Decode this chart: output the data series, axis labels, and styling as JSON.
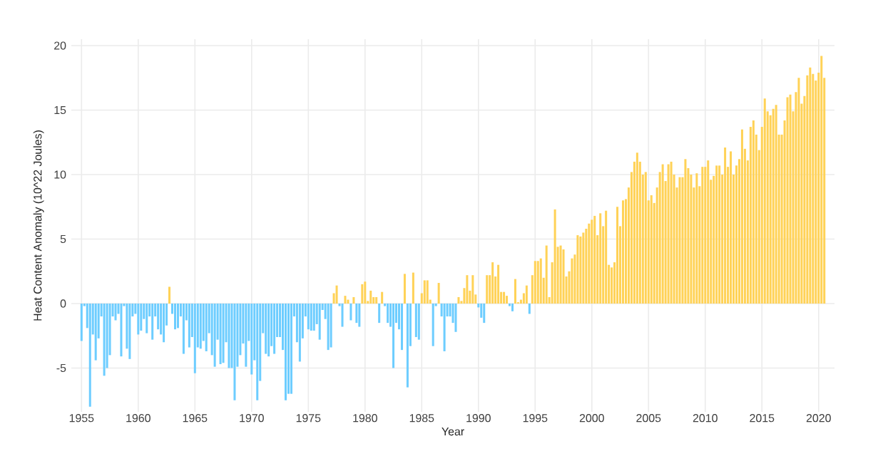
{
  "chart_data": {
    "type": "bar",
    "xlabel": "Year",
    "ylabel": "Heat Content Anomaly (10^22 Joules)",
    "xlim": [
      1954.1,
      2021.4
    ],
    "ylim": [
      -8.4,
      20.5
    ],
    "xticks": [
      1955,
      1960,
      1965,
      1970,
      1975,
      1980,
      1985,
      1990,
      1995,
      2000,
      2005,
      2010,
      2015,
      2020
    ],
    "yticks": [
      -5,
      0,
      5,
      10,
      15,
      20
    ],
    "grid": true,
    "x": [
      1955.0,
      1955.25,
      1955.5,
      1955.75,
      1956.0,
      1956.25,
      1956.5,
      1956.75,
      1957.0,
      1957.25,
      1957.5,
      1957.75,
      1958.0,
      1958.25,
      1958.5,
      1958.75,
      1959.0,
      1959.25,
      1959.5,
      1959.75,
      1960.0,
      1960.25,
      1960.5,
      1960.75,
      1961.0,
      1961.25,
      1961.5,
      1961.75,
      1962.0,
      1962.25,
      1962.5,
      1962.75,
      1963.0,
      1963.25,
      1963.5,
      1963.75,
      1964.0,
      1964.25,
      1964.5,
      1964.75,
      1965.0,
      1965.25,
      1965.5,
      1965.75,
      1966.0,
      1966.25,
      1966.5,
      1966.75,
      1967.0,
      1967.25,
      1967.5,
      1967.75,
      1968.0,
      1968.25,
      1968.5,
      1968.75,
      1969.0,
      1969.25,
      1969.5,
      1969.75,
      1970.0,
      1970.25,
      1970.5,
      1970.75,
      1971.0,
      1971.25,
      1971.5,
      1971.75,
      1972.0,
      1972.25,
      1972.5,
      1972.75,
      1973.0,
      1973.25,
      1973.5,
      1973.75,
      1974.0,
      1974.25,
      1974.5,
      1974.75,
      1975.0,
      1975.25,
      1975.5,
      1975.75,
      1976.0,
      1976.25,
      1976.5,
      1976.75,
      1977.0,
      1977.25,
      1977.5,
      1977.75,
      1978.0,
      1978.25,
      1978.5,
      1978.75,
      1979.0,
      1979.25,
      1979.5,
      1979.75,
      1980.0,
      1980.25,
      1980.5,
      1980.75,
      1981.0,
      1981.25,
      1981.5,
      1981.75,
      1982.0,
      1982.25,
      1982.5,
      1982.75,
      1983.0,
      1983.25,
      1983.5,
      1983.75,
      1984.0,
      1984.25,
      1984.5,
      1984.75,
      1985.0,
      1985.25,
      1985.5,
      1985.75,
      1986.0,
      1986.25,
      1986.5,
      1986.75,
      1987.0,
      1987.25,
      1987.5,
      1987.75,
      1988.0,
      1988.25,
      1988.5,
      1988.75,
      1989.0,
      1989.25,
      1989.5,
      1989.75,
      1990.0,
      1990.25,
      1990.5,
      1990.75,
      1991.0,
      1991.25,
      1991.5,
      1991.75,
      1992.0,
      1992.25,
      1992.5,
      1992.75,
      1993.0,
      1993.25,
      1993.5,
      1993.75,
      1994.0,
      1994.25,
      1994.5,
      1994.75,
      1995.0,
      1995.25,
      1995.5,
      1995.75,
      1996.0,
      1996.25,
      1996.5,
      1996.75,
      1997.0,
      1997.25,
      1997.5,
      1997.75,
      1998.0,
      1998.25,
      1998.5,
      1998.75,
      1999.0,
      1999.25,
      1999.5,
      1999.75,
      2000.0,
      2000.25,
      2000.5,
      2000.75,
      2001.0,
      2001.25,
      2001.5,
      2001.75,
      2002.0,
      2002.25,
      2002.5,
      2002.75,
      2003.0,
      2003.25,
      2003.5,
      2003.75,
      2004.0,
      2004.25,
      2004.5,
      2004.75,
      2005.0,
      2005.25,
      2005.5,
      2005.75,
      2006.0,
      2006.25,
      2006.5,
      2006.75,
      2007.0,
      2007.25,
      2007.5,
      2007.75,
      2008.0,
      2008.25,
      2008.5,
      2008.75,
      2009.0,
      2009.25,
      2009.5,
      2009.75,
      2010.0,
      2010.25,
      2010.5,
      2010.75,
      2011.0,
      2011.25,
      2011.5,
      2011.75,
      2012.0,
      2012.25,
      2012.5,
      2012.75,
      2013.0,
      2013.25,
      2013.5,
      2013.75,
      2014.0,
      2014.25,
      2014.5,
      2014.75,
      2015.0,
      2015.25,
      2015.5,
      2015.75,
      2016.0,
      2016.25,
      2016.5,
      2016.75,
      2017.0,
      2017.25,
      2017.5,
      2017.75,
      2018.0,
      2018.25,
      2018.5,
      2018.75,
      2019.0,
      2019.25,
      2019.5,
      2019.75,
      2020.0,
      2020.25,
      2020.5
    ],
    "values": [
      -2.9,
      -0.2,
      -1.9,
      -8.0,
      -2.4,
      -4.4,
      -2.7,
      -1.0,
      -5.6,
      -5.0,
      -4.0,
      -1.0,
      -1.3,
      -0.8,
      -4.1,
      -0.2,
      -3.5,
      -4.3,
      -1.0,
      -0.8,
      -2.4,
      -2.1,
      -1.2,
      -2.3,
      -1.0,
      -2.8,
      -1.0,
      -2.0,
      -2.4,
      -3.0,
      -1.7,
      1.3,
      -0.8,
      -2.0,
      -1.9,
      -1.0,
      -3.9,
      -1.3,
      -3.4,
      -2.6,
      -5.4,
      -3.4,
      -3.5,
      -2.9,
      -3.7,
      -2.3,
      -4.0,
      -4.9,
      -2.8,
      -4.7,
      -4.6,
      -3.0,
      -5.0,
      -5.0,
      -7.5,
      -4.9,
      -4.0,
      -3.1,
      -4.9,
      -2.9,
      -5.5,
      -4.4,
      -7.5,
      -6.0,
      -2.3,
      -3.9,
      -4.1,
      -3.3,
      -3.9,
      -2.6,
      -2.6,
      -3.6,
      -7.5,
      -7.0,
      -7.0,
      -1.0,
      -3.0,
      -4.5,
      -2.7,
      -1.0,
      -2.0,
      -2.1,
      -2.1,
      -1.6,
      -2.8,
      -0.5,
      -1.2,
      -3.6,
      -3.4,
      0.8,
      1.4,
      -0.2,
      -1.8,
      0.6,
      0.3,
      -1.3,
      0.5,
      -1.5,
      -1.8,
      1.5,
      1.7,
      0.2,
      1.0,
      0.5,
      0.5,
      -1.5,
      0.9,
      -0.2,
      -1.5,
      -1.8,
      -5.0,
      -1.5,
      -2.0,
      -3.6,
      2.3,
      -6.5,
      -3.3,
      2.4,
      -2.6,
      -2.8,
      0.8,
      1.8,
      1.8,
      0.3,
      -3.3,
      -0.2,
      1.6,
      -1.0,
      -3.7,
      -1.0,
      -1.0,
      -1.5,
      -2.2,
      0.5,
      0.2,
      1.2,
      2.2,
      1.0,
      2.2,
      0.7,
      -0.3,
      -1.1,
      -1.5,
      2.2,
      2.2,
      3.2,
      2.1,
      3.0,
      0.9,
      0.9,
      0.6,
      -0.2,
      -0.6,
      1.9,
      0.1,
      0.3,
      0.8,
      1.4,
      -0.8,
      2.2,
      3.3,
      3.3,
      3.5,
      2.0,
      4.5,
      0.5,
      3.2,
      7.3,
      4.4,
      4.5,
      4.2,
      2.1,
      2.5,
      3.5,
      3.8,
      5.3,
      5.2,
      5.5,
      5.8,
      6.2,
      6.5,
      6.8,
      5.3,
      7.0,
      6.0,
      7.2,
      3.0,
      2.8,
      3.2,
      7.5,
      6.0,
      8.0,
      8.1,
      9.0,
      10.2,
      11.0,
      11.7,
      11.0,
      10.0,
      10.2,
      8.0,
      8.4,
      7.8,
      9.0,
      10.2,
      10.8,
      9.5,
      10.8,
      11.0,
      10.0,
      9.0,
      9.8,
      9.8,
      11.2,
      10.5,
      10.0,
      9.0,
      10.1,
      9.1,
      10.6,
      10.6,
      11.1,
      9.6,
      9.9,
      10.7,
      10.7,
      10.0,
      12.1,
      10.6,
      11.8,
      10.0,
      10.7,
      11.2,
      13.5,
      12.0,
      11.1,
      13.7,
      14.2,
      13.1,
      11.9,
      13.7,
      15.9,
      14.9,
      14.6,
      15.1,
      15.4,
      13.1,
      13.1,
      14.2,
      16.0,
      16.2,
      14.9,
      16.4,
      17.5,
      15.5,
      16.1,
      17.7,
      18.3,
      17.8,
      17.3,
      17.9,
      19.2,
      17.5
    ],
    "colors": [
      "#6dcdff",
      "#6dcdff",
      "#6dcdff",
      "#6dcdff",
      "#6dcdff",
      "#6dcdff",
      "#6dcdff",
      "#6dcdff",
      "#6dcdff",
      "#6dcdff",
      "#6dcdff",
      "#6dcdff",
      "#6dcdff",
      "#6dcdff",
      "#6dcdff",
      "#6dcdff",
      "#6dcdff",
      "#6dcdff",
      "#6dcdff",
      "#6dcdff",
      "#6dcdff",
      "#6dcdff",
      "#6dcdff",
      "#6dcdff",
      "#6dcdff",
      "#6dcdff",
      "#6dcdff",
      "#6dcdff",
      "#6dcdff",
      "#6dcdff",
      "#6dcdff",
      "#ffd257",
      "#6dcdff",
      "#6dcdff",
      "#6dcdff",
      "#6dcdff",
      "#6dcdff",
      "#6dcdff",
      "#6dcdff",
      "#6dcdff",
      "#6dcdff",
      "#6dcdff",
      "#6dcdff",
      "#6dcdff",
      "#6dcdff",
      "#6dcdff",
      "#6dcdff",
      "#6dcdff",
      "#6dcdff",
      "#6dcdff",
      "#6dcdff",
      "#6dcdff",
      "#6dcdff",
      "#6dcdff",
      "#6dcdff",
      "#6dcdff",
      "#6dcdff",
      "#6dcdff",
      "#6dcdff",
      "#6dcdff",
      "#6dcdff",
      "#6dcdff",
      "#6dcdff",
      "#6dcdff",
      "#6dcdff",
      "#6dcdff",
      "#6dcdff",
      "#6dcdff",
      "#6dcdff",
      "#6dcdff",
      "#6dcdff",
      "#6dcdff",
      "#6dcdff",
      "#6dcdff",
      "#6dcdff",
      "#6dcdff",
      "#6dcdff",
      "#6dcdff",
      "#6dcdff",
      "#6dcdff",
      "#6dcdff",
      "#6dcdff",
      "#6dcdff",
      "#6dcdff",
      "#6dcdff",
      "#6dcdff",
      "#6dcdff",
      "#6dcdff",
      "#6dcdff",
      "#ffd257",
      "#ffd257",
      "#6dcdff",
      "#6dcdff",
      "#ffd257",
      "#ffd257",
      "#6dcdff",
      "#ffd257",
      "#6dcdff",
      "#6dcdff",
      "#ffd257",
      "#ffd257",
      "#ffd257",
      "#ffd257",
      "#ffd257",
      "#ffd257",
      "#6dcdff",
      "#ffd257",
      "#6dcdff",
      "#6dcdff",
      "#6dcdff",
      "#6dcdff",
      "#6dcdff",
      "#6dcdff",
      "#6dcdff",
      "#ffd257",
      "#6dcdff",
      "#6dcdff",
      "#ffd257",
      "#6dcdff",
      "#6dcdff",
      "#ffd257",
      "#ffd257",
      "#ffd257",
      "#ffd257",
      "#6dcdff",
      "#6dcdff",
      "#ffd257",
      "#6dcdff",
      "#6dcdff",
      "#6dcdff",
      "#6dcdff",
      "#6dcdff",
      "#6dcdff",
      "#ffd257",
      "#ffd257",
      "#ffd257",
      "#ffd257",
      "#ffd257",
      "#ffd257",
      "#ffd257",
      "#6dcdff",
      "#6dcdff",
      "#6dcdff",
      "#ffd257",
      "#ffd257",
      "#ffd257",
      "#ffd257",
      "#ffd257",
      "#ffd257",
      "#ffd257",
      "#ffd257",
      "#6dcdff",
      "#6dcdff",
      "#ffd257",
      "#ffd257",
      "#ffd257",
      "#ffd257",
      "#ffd257",
      "#6dcdff",
      "#ffd257",
      "#ffd257",
      "#ffd257",
      "#ffd257",
      "#ffd257",
      "#ffd257",
      "#ffd257",
      "#ffd257",
      "#ffd257",
      "#ffd257",
      "#ffd257",
      "#ffd257",
      "#ffd257",
      "#ffd257",
      "#ffd257",
      "#ffd257",
      "#ffd257",
      "#ffd257",
      "#ffd257",
      "#ffd257",
      "#ffd257",
      "#ffd257",
      "#ffd257",
      "#ffd257",
      "#ffd257",
      "#ffd257",
      "#ffd257",
      "#ffd257",
      "#ffd257",
      "#ffd257",
      "#ffd257",
      "#ffd257",
      "#ffd257",
      "#ffd257",
      "#ffd257",
      "#ffd257",
      "#ffd257",
      "#ffd257",
      "#ffd257",
      "#ffd257",
      "#ffd257",
      "#ffd257",
      "#ffd257",
      "#ffd257",
      "#ffd257",
      "#ffd257",
      "#ffd257",
      "#ffd257",
      "#ffd257",
      "#ffd257",
      "#ffd257",
      "#ffd257",
      "#ffd257",
      "#ffd257",
      "#ffd257",
      "#ffd257",
      "#ffd257",
      "#ffd257",
      "#ffd257",
      "#ffd257",
      "#ffd257",
      "#ffd257",
      "#ffd257",
      "#ffd257",
      "#ffd257",
      "#ffd257",
      "#ffd257",
      "#ffd257",
      "#ffd257",
      "#ffd257",
      "#ffd257",
      "#ffd257",
      "#ffd257",
      "#ffd257",
      "#ffd257",
      "#ffd257",
      "#ffd257",
      "#ffd257",
      "#ffd257",
      "#ffd257",
      "#ffd257",
      "#ffd257",
      "#ffd257",
      "#ffd257",
      "#ffd257",
      "#ffd257",
      "#ffd257",
      "#ffd257",
      "#ffd257",
      "#ffd257",
      "#ffd257",
      "#ffd257",
      "#ffd257",
      "#ffd257",
      "#ffd257",
      "#ffd257",
      "#ffd257",
      "#ffd257",
      "#ffd257",
      "#ffd257",
      "#ffd257",
      "#ffd257",
      "#ffd257",
      "#ffd257"
    ]
  }
}
